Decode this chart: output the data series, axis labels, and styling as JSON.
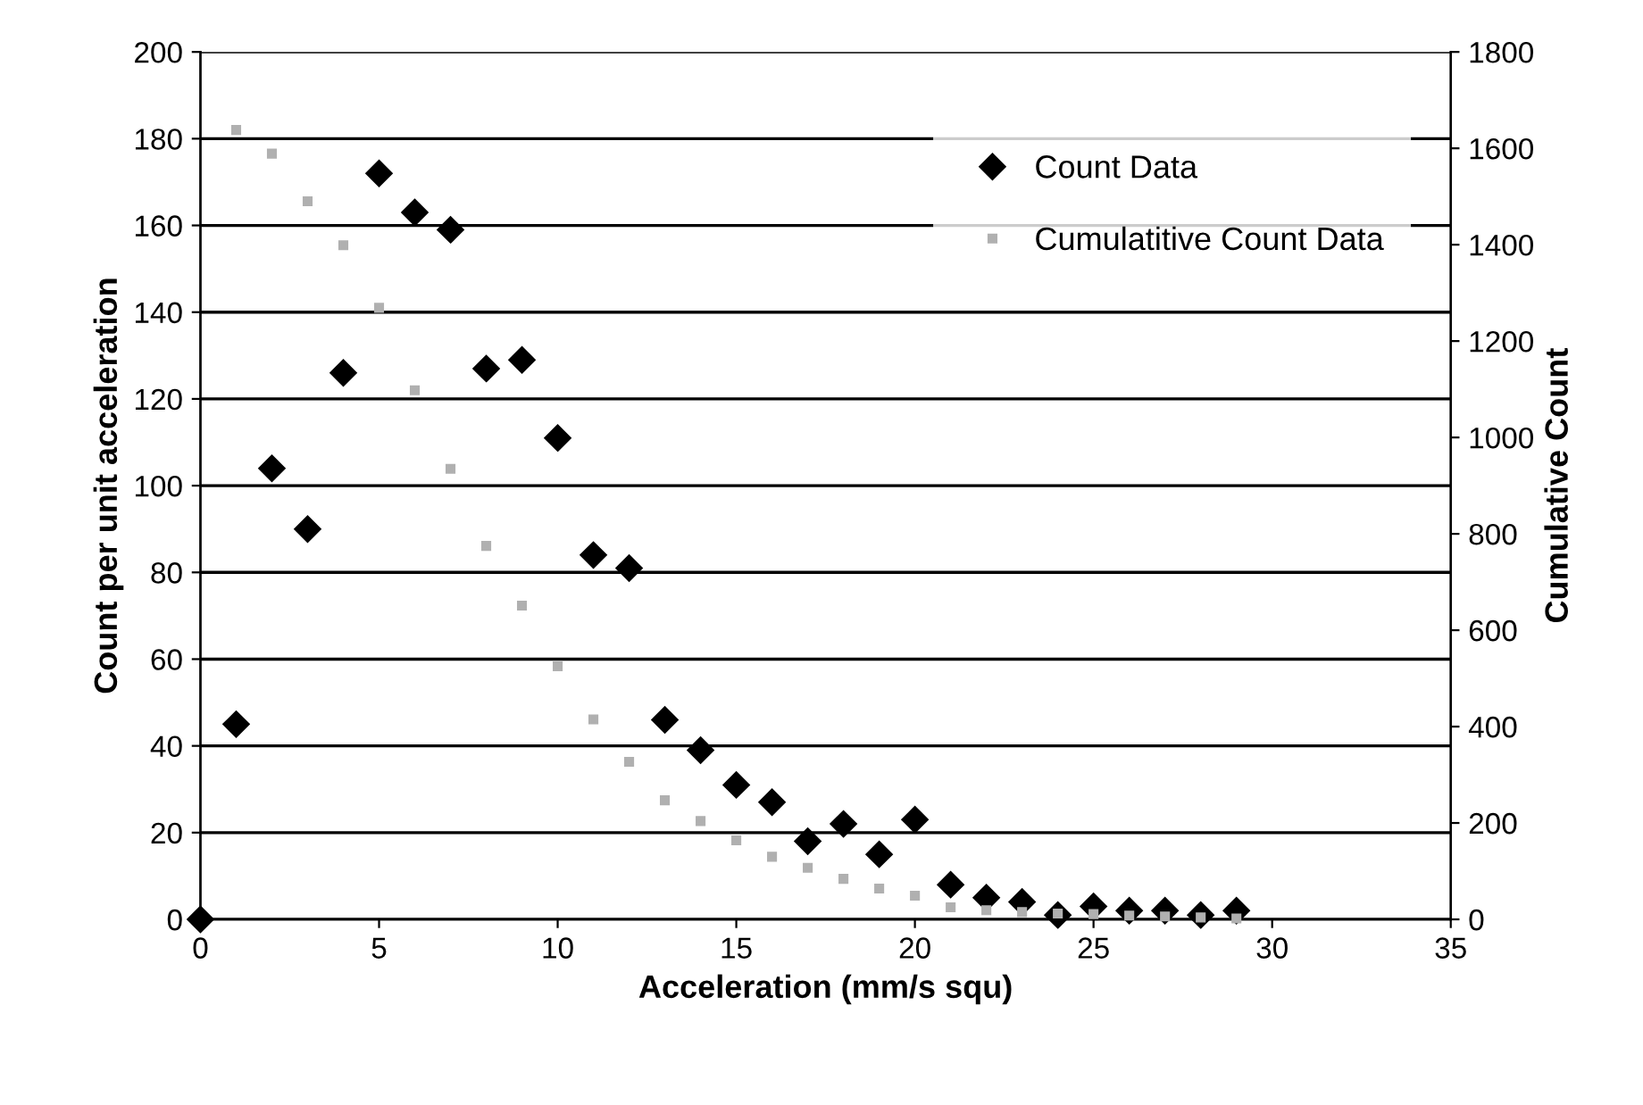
{
  "chart_data": {
    "type": "scatter",
    "xlabel": "Acceleration (mm/s squ)",
    "ylabel": "Count per unit acceleration",
    "y2label": "Cumulative Count",
    "xlim": [
      0,
      35
    ],
    "xticks": [
      0,
      5,
      10,
      15,
      20,
      25,
      30,
      35
    ],
    "ylim": [
      0,
      200
    ],
    "yticks": [
      0,
      20,
      40,
      60,
      80,
      100,
      120,
      140,
      160,
      180,
      200
    ],
    "y2lim": [
      0,
      1800
    ],
    "y2ticks": [
      0,
      200,
      400,
      600,
      800,
      1000,
      1200,
      1400,
      1600,
      1800
    ],
    "grid": "y",
    "legend": "top right",
    "series": [
      {
        "name": "Count Data",
        "color": "#000000",
        "marker": "diamond",
        "x": [
          0,
          1,
          2,
          3,
          4,
          5,
          6,
          7,
          8,
          9,
          10,
          11,
          12,
          13,
          14,
          15,
          16,
          17,
          18,
          19,
          20,
          21,
          22,
          23,
          24,
          25,
          26,
          27,
          28,
          29
        ],
        "values": [
          0,
          45,
          104,
          90,
          126,
          172,
          163,
          159,
          127,
          129,
          111,
          84,
          81,
          46,
          39,
          31,
          27,
          18,
          22,
          15,
          23,
          8,
          5,
          4,
          1,
          3,
          2,
          2,
          1,
          2
        ]
      },
      {
        "name": "Cumulatitive Count Data",
        "color": "#b0b0b0",
        "marker": "square",
        "axis": "y2",
        "x": [
          1,
          2,
          3,
          4,
          5,
          6,
          7,
          8,
          9,
          10,
          11,
          12,
          13,
          14,
          15,
          16,
          17,
          18,
          19,
          20,
          21,
          22,
          23,
          24,
          25,
          26,
          27,
          28,
          29
        ],
        "values": [
          1638,
          1589,
          1490,
          1399,
          1269,
          1098,
          935,
          775,
          651,
          525,
          415,
          327,
          247,
          204,
          164,
          130,
          107,
          84,
          64,
          49,
          25,
          19,
          15,
          12,
          11,
          8,
          6,
          4,
          2
        ]
      }
    ]
  }
}
